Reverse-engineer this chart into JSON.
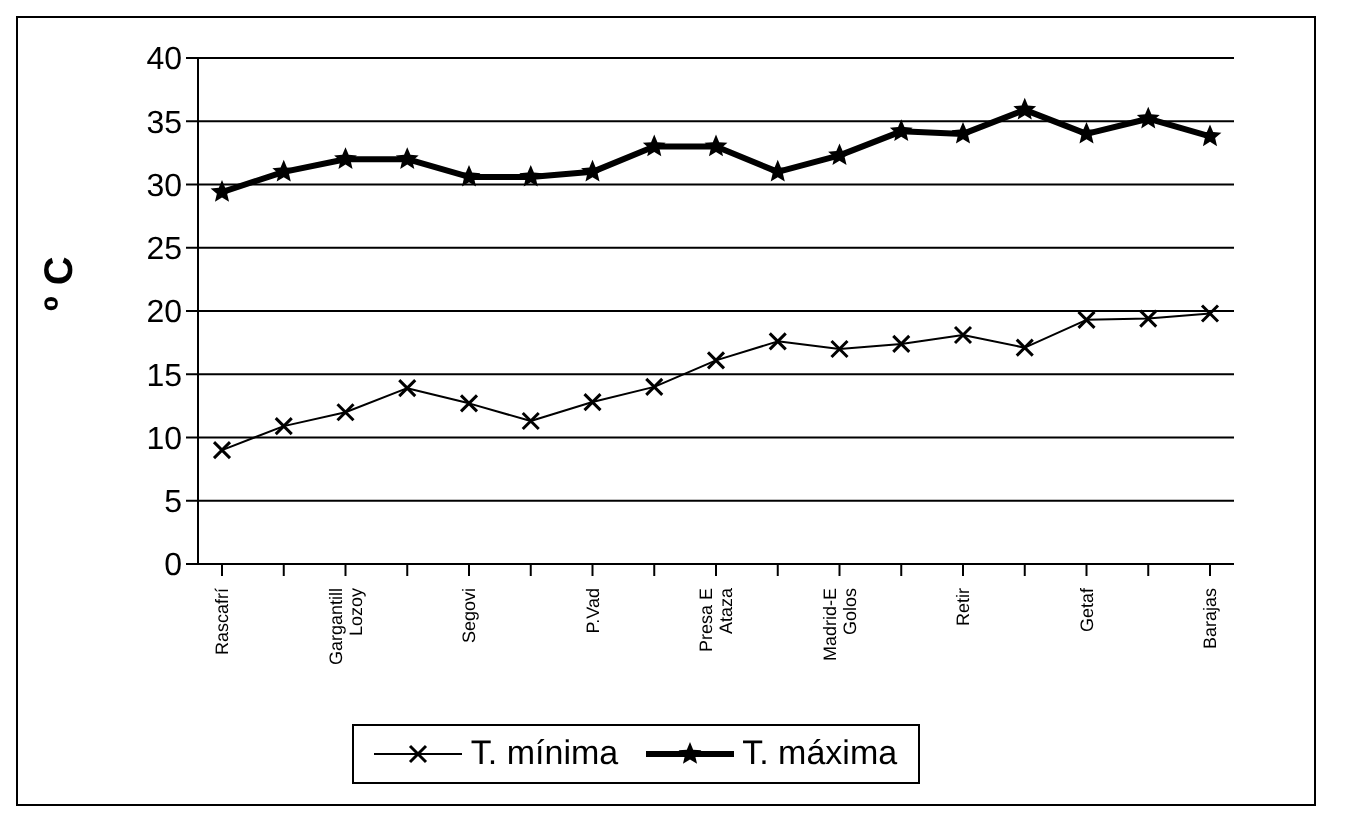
{
  "chart_data": {
    "type": "line",
    "ylabel": "º C",
    "categories": [
      "Rascafrí",
      null,
      "Gargantill Lozoy",
      null,
      "Segovi",
      null,
      "P.Vad",
      null,
      "Presa E Ataza",
      null,
      "Madrid-E Golos",
      null,
      "Retir",
      null,
      "Getaf",
      null,
      "Barajas"
    ],
    "series": [
      {
        "name": "T. mínima",
        "color": "#000000",
        "marker": "cross",
        "values": [
          9.0,
          10.9,
          12.0,
          13.9,
          12.7,
          11.3,
          12.8,
          14.0,
          16.1,
          17.6,
          17.0,
          17.4,
          18.1,
          17.1,
          19.3,
          19.4,
          19.8
        ]
      },
      {
        "name": "T. máxima",
        "color": "#000000",
        "marker": "star",
        "values": [
          29.4,
          31.0,
          32.0,
          32.0,
          30.6,
          30.6,
          31.0,
          33.0,
          33.0,
          31.0,
          32.3,
          34.2,
          34.0,
          35.9,
          34.0,
          35.2,
          33.8
        ]
      }
    ],
    "ylim": [
      0,
      40
    ],
    "yticks": [
      0,
      5,
      10,
      15,
      20,
      25,
      30,
      35,
      40
    ],
    "grid": "y",
    "legend": "bottom",
    "line_style": "solid"
  }
}
